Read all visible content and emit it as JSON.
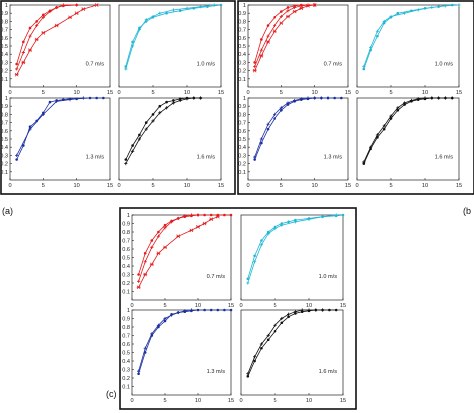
{
  "panel_labels": [
    "(a)",
    "(b",
    "(c)"
  ],
  "colors": {
    "red": "#e41a1c",
    "cyan": "#1fb7d6",
    "blue": "#1c2fa0",
    "black": "#111111"
  },
  "chart_data": [
    {
      "type": "line",
      "panel": "a",
      "subplot": "0.7 m/s",
      "color": "red",
      "xlim": [
        0,
        15
      ],
      "ylim": [
        0,
        1
      ],
      "x_ticks": [
        0,
        5,
        10,
        15
      ],
      "y_ticks": [
        0.1,
        0.2,
        0.3,
        0.4,
        0.5,
        0.6,
        0.7,
        0.8,
        0.9,
        1
      ],
      "speed_label": "0.7 m/s",
      "series": [
        {
          "x": [
            1,
            2,
            3,
            4,
            5,
            6,
            7,
            8,
            10
          ],
          "y": [
            0.28,
            0.55,
            0.72,
            0.8,
            0.88,
            0.93,
            0.97,
            0.99,
            1.0
          ]
        },
        {
          "x": [
            1,
            2,
            3,
            4,
            5,
            6,
            7,
            8,
            10
          ],
          "y": [
            0.22,
            0.42,
            0.62,
            0.75,
            0.85,
            0.92,
            0.97,
            1.0,
            1.0
          ]
        },
        {
          "x": [
            1,
            2,
            3,
            4,
            5,
            7,
            9,
            10,
            11,
            13
          ],
          "y": [
            0.15,
            0.3,
            0.45,
            0.58,
            0.66,
            0.75,
            0.85,
            0.9,
            0.95,
            1.0
          ]
        }
      ]
    },
    {
      "type": "line",
      "panel": "a",
      "subplot": "1.0 m/s",
      "color": "cyan",
      "xlim": [
        0,
        15
      ],
      "ylim": [
        0,
        1
      ],
      "x_ticks": [
        0,
        5,
        10,
        15
      ],
      "y_ticks": [],
      "speed_label": "1.0 m/s",
      "series": [
        {
          "x": [
            1,
            2,
            3,
            4,
            5,
            7,
            9,
            11,
            13,
            15
          ],
          "y": [
            0.25,
            0.55,
            0.72,
            0.8,
            0.85,
            0.9,
            0.93,
            0.96,
            0.98,
            1.0
          ]
        },
        {
          "x": [
            1,
            2,
            3,
            4,
            5,
            6,
            8,
            10,
            12,
            14
          ],
          "y": [
            0.22,
            0.5,
            0.7,
            0.82,
            0.86,
            0.9,
            0.94,
            0.96,
            0.98,
            1.0
          ]
        }
      ]
    },
    {
      "type": "line",
      "panel": "a",
      "subplot": "1.3 m/s",
      "color": "blue",
      "xlim": [
        0,
        15
      ],
      "ylim": [
        0,
        1
      ],
      "x_ticks": [
        0,
        5,
        10,
        15
      ],
      "y_ticks": [
        0.1,
        0.2,
        0.3,
        0.4,
        0.5,
        0.6,
        0.7,
        0.8,
        0.9,
        1
      ],
      "speed_label": "1.3 m/s",
      "series": [
        {
          "x": [
            1,
            2,
            3,
            4,
            5,
            6,
            7,
            8,
            9,
            10,
            12,
            13,
            14
          ],
          "y": [
            0.25,
            0.42,
            0.65,
            0.72,
            0.82,
            0.95,
            0.97,
            0.98,
            0.99,
            0.99,
            1.0,
            1.0,
            1.0
          ]
        },
        {
          "x": [
            1,
            3,
            5,
            7,
            9,
            11
          ],
          "y": [
            0.3,
            0.62,
            0.8,
            0.96,
            0.98,
            1.0
          ]
        }
      ]
    },
    {
      "type": "line",
      "panel": "a",
      "subplot": "1.6 m/s",
      "color": "black",
      "xlim": [
        0,
        15
      ],
      "ylim": [
        0,
        1
      ],
      "x_ticks": [
        0,
        5,
        10,
        15
      ],
      "y_ticks": [],
      "speed_label": "1.6 m/s",
      "series": [
        {
          "x": [
            1,
            2,
            3,
            4,
            5,
            6,
            7,
            8,
            9,
            10,
            11,
            12
          ],
          "y": [
            0.25,
            0.42,
            0.55,
            0.7,
            0.8,
            0.9,
            0.95,
            0.97,
            0.99,
            1.0,
            1.0,
            1.0
          ]
        },
        {
          "x": [
            1,
            2,
            3,
            4,
            5,
            6,
            7,
            8,
            9,
            10,
            11,
            12
          ],
          "y": [
            0.2,
            0.35,
            0.5,
            0.62,
            0.72,
            0.82,
            0.88,
            0.94,
            0.97,
            0.99,
            1.0,
            1.0
          ]
        }
      ]
    },
    {
      "type": "line",
      "panel": "b",
      "subplot": "0.7 m/s",
      "color": "red",
      "xlim": [
        0,
        15
      ],
      "ylim": [
        0,
        1
      ],
      "x_ticks": [
        0,
        5,
        10,
        15
      ],
      "y_ticks": [
        0.1,
        0.2,
        0.3,
        0.4,
        0.5,
        0.6,
        0.7,
        0.8,
        0.9,
        1
      ],
      "speed_label": "0.7 m/s",
      "series": [
        {
          "x": [
            1,
            2,
            3,
            4,
            5,
            6,
            7,
            8,
            10
          ],
          "y": [
            0.3,
            0.58,
            0.75,
            0.85,
            0.92,
            0.97,
            0.99,
            1.0,
            1.0
          ]
        },
        {
          "x": [
            1,
            2,
            3,
            4,
            5,
            6,
            7,
            8,
            9,
            10
          ],
          "y": [
            0.25,
            0.45,
            0.62,
            0.75,
            0.86,
            0.93,
            0.97,
            0.99,
            1.0,
            1.0
          ]
        },
        {
          "x": [
            1,
            2,
            3,
            4,
            5,
            6,
            7,
            8,
            9,
            10
          ],
          "y": [
            0.2,
            0.38,
            0.55,
            0.68,
            0.78,
            0.86,
            0.92,
            0.96,
            0.99,
            1.0
          ]
        }
      ]
    },
    {
      "type": "line",
      "panel": "b",
      "subplot": "1.0 m/s",
      "color": "cyan",
      "xlim": [
        0,
        15
      ],
      "ylim": [
        0,
        1
      ],
      "x_ticks": [
        0,
        5,
        10,
        15
      ],
      "y_ticks": [],
      "speed_label": "1.0 m/s",
      "series": [
        {
          "x": [
            1,
            2,
            3,
            4,
            5,
            6,
            8,
            10,
            12,
            14
          ],
          "y": [
            0.22,
            0.45,
            0.62,
            0.78,
            0.85,
            0.9,
            0.93,
            0.96,
            0.98,
            1.0
          ]
        },
        {
          "x": [
            1,
            2,
            3,
            4,
            5,
            7,
            9,
            11,
            13,
            15
          ],
          "y": [
            0.25,
            0.48,
            0.68,
            0.8,
            0.86,
            0.9,
            0.94,
            0.97,
            0.99,
            1.0
          ]
        }
      ]
    },
    {
      "type": "line",
      "panel": "b",
      "subplot": "1.3 m/s",
      "color": "blue",
      "xlim": [
        0,
        15
      ],
      "ylim": [
        0,
        1
      ],
      "x_ticks": [
        0,
        5,
        10,
        15
      ],
      "y_ticks": [
        0.1,
        0.2,
        0.3,
        0.4,
        0.5,
        0.6,
        0.7,
        0.8,
        0.9,
        1
      ],
      "speed_label": "1.3 m/s",
      "series": [
        {
          "x": [
            1,
            2,
            3,
            4,
            5,
            6,
            7,
            8,
            9,
            10,
            11,
            12,
            13,
            14
          ],
          "y": [
            0.25,
            0.45,
            0.62,
            0.75,
            0.85,
            0.92,
            0.96,
            0.98,
            0.99,
            1.0,
            1.0,
            1.0,
            1.0,
            1.0
          ]
        },
        {
          "x": [
            1,
            2,
            3,
            4,
            5,
            6,
            7,
            8,
            9,
            10,
            11,
            12
          ],
          "y": [
            0.28,
            0.5,
            0.68,
            0.8,
            0.88,
            0.94,
            0.97,
            0.99,
            1.0,
            1.0,
            1.0,
            1.0
          ]
        }
      ]
    },
    {
      "type": "line",
      "panel": "b",
      "subplot": "1.6 m/s",
      "color": "black",
      "xlim": [
        0,
        15
      ],
      "ylim": [
        0,
        1
      ],
      "x_ticks": [
        0,
        5,
        10,
        15
      ],
      "y_ticks": [],
      "speed_label": "1.6 m/s",
      "series": [
        {
          "x": [
            1,
            2,
            3,
            4,
            5,
            6,
            7,
            8,
            9,
            10,
            11,
            12,
            13,
            14
          ],
          "y": [
            0.2,
            0.38,
            0.52,
            0.62,
            0.75,
            0.85,
            0.92,
            0.96,
            0.98,
            0.99,
            1.0,
            1.0,
            1.0,
            1.0
          ]
        },
        {
          "x": [
            1,
            2,
            3,
            4,
            5,
            6,
            7,
            8,
            9,
            10,
            11,
            12,
            13,
            14
          ],
          "y": [
            0.22,
            0.4,
            0.55,
            0.66,
            0.78,
            0.88,
            0.94,
            0.97,
            0.99,
            1.0,
            1.0,
            1.0,
            1.0,
            1.0
          ]
        }
      ]
    },
    {
      "type": "line",
      "panel": "c",
      "subplot": "0.7 m/s",
      "color": "red",
      "xlim": [
        0,
        15
      ],
      "ylim": [
        0,
        1
      ],
      "x_ticks": [
        0,
        5,
        10,
        15
      ],
      "y_ticks": [
        0.1,
        0.2,
        0.3,
        0.4,
        0.5,
        0.6,
        0.7,
        0.8,
        0.9,
        1
      ],
      "speed_label": "0.7 m/s",
      "series": [
        {
          "x": [
            1,
            2,
            3,
            4,
            5,
            6,
            7,
            8,
            9,
            10,
            11,
            12,
            13,
            14,
            15
          ],
          "y": [
            0.3,
            0.55,
            0.7,
            0.8,
            0.88,
            0.93,
            0.96,
            0.98,
            0.99,
            1.0,
            1.0,
            1.0,
            1.0,
            1.0,
            1.0
          ]
        },
        {
          "x": [
            1,
            2,
            3,
            4,
            5,
            6,
            7,
            8,
            9,
            10
          ],
          "y": [
            0.22,
            0.45,
            0.62,
            0.75,
            0.85,
            0.92,
            0.96,
            0.99,
            1.0,
            1.0
          ]
        },
        {
          "x": [
            1,
            2,
            3,
            4,
            5,
            7,
            9,
            10,
            11,
            12,
            13
          ],
          "y": [
            0.15,
            0.3,
            0.42,
            0.55,
            0.62,
            0.75,
            0.82,
            0.86,
            0.9,
            0.95,
            0.98
          ]
        }
      ]
    },
    {
      "type": "line",
      "panel": "c",
      "subplot": "1.0 m/s",
      "color": "cyan",
      "xlim": [
        0,
        15
      ],
      "ylim": [
        0,
        1
      ],
      "x_ticks": [
        0,
        5,
        10,
        15
      ],
      "y_ticks": [],
      "speed_label": "1.0 m/s",
      "series": [
        {
          "x": [
            1,
            2,
            3,
            4,
            5,
            6,
            7,
            8,
            10,
            12,
            14,
            15
          ],
          "y": [
            0.25,
            0.52,
            0.7,
            0.8,
            0.86,
            0.9,
            0.92,
            0.94,
            0.96,
            0.98,
            0.99,
            1.0
          ]
        },
        {
          "x": [
            1,
            2,
            3,
            4,
            5,
            6,
            8,
            10,
            12,
            14
          ],
          "y": [
            0.2,
            0.45,
            0.65,
            0.78,
            0.84,
            0.88,
            0.92,
            0.95,
            0.98,
            1.0
          ]
        }
      ]
    },
    {
      "type": "line",
      "panel": "c",
      "subplot": "1.3 m/s",
      "color": "blue",
      "xlim": [
        0,
        15
      ],
      "ylim": [
        0,
        1
      ],
      "x_ticks": [
        0,
        5,
        10,
        15
      ],
      "y_ticks": [
        0.1,
        0.2,
        0.3,
        0.4,
        0.5,
        0.6,
        0.7,
        0.8,
        0.9,
        1
      ],
      "speed_label": "1.3 m/s",
      "series": [
        {
          "x": [
            1,
            2,
            3,
            4,
            5,
            6,
            7,
            8,
            9,
            10,
            11,
            12,
            13,
            14,
            15
          ],
          "y": [
            0.25,
            0.5,
            0.7,
            0.8,
            0.87,
            0.95,
            0.97,
            0.98,
            0.99,
            1.0,
            1.0,
            1.0,
            1.0,
            1.0,
            1.0
          ]
        },
        {
          "x": [
            1,
            2,
            3,
            4,
            5,
            6,
            7,
            8,
            9
          ],
          "y": [
            0.28,
            0.55,
            0.72,
            0.82,
            0.9,
            0.94,
            0.97,
            0.99,
            1.0
          ]
        }
      ]
    },
    {
      "type": "line",
      "panel": "c",
      "subplot": "1.6 m/s",
      "color": "black",
      "xlim": [
        0,
        15
      ],
      "ylim": [
        0,
        1
      ],
      "x_ticks": [
        0,
        5,
        10,
        15
      ],
      "y_ticks": [],
      "speed_label": "1.6 m/s",
      "series": [
        {
          "x": [
            1,
            2,
            3,
            4,
            5,
            6,
            7,
            8,
            9,
            10,
            11,
            12,
            13,
            14
          ],
          "y": [
            0.22,
            0.4,
            0.55,
            0.65,
            0.75,
            0.85,
            0.92,
            0.96,
            0.98,
            0.99,
            1.0,
            1.0,
            1.0,
            1.0
          ]
        },
        {
          "x": [
            1,
            2,
            3,
            4,
            5,
            6,
            7,
            8,
            9,
            10,
            11,
            12
          ],
          "y": [
            0.25,
            0.45,
            0.6,
            0.7,
            0.82,
            0.9,
            0.95,
            0.98,
            1.0,
            1.0,
            1.0,
            1.0
          ]
        }
      ]
    }
  ]
}
